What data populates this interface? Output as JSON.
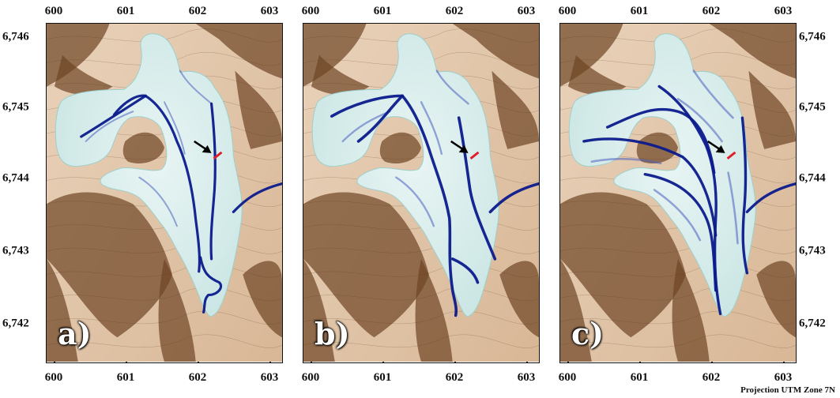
{
  "axes": {
    "x_ticks": [
      "600",
      "601",
      "602",
      "603"
    ],
    "y_ticks": [
      "6,746",
      "6,745",
      "6,744",
      "6,743",
      "6,742"
    ]
  },
  "panels": [
    {
      "label": "a)"
    },
    {
      "label": "b)"
    },
    {
      "label": "c)"
    }
  ],
  "projection": "Projection UTM Zone 7N",
  "colors": {
    "terrain_dark": "#6e4424",
    "terrain_light": "#e9d2ba",
    "glacier": "#c7e4e2",
    "channel": "#0b1a8c",
    "marker": "#e0202a",
    "arrow": "#000000"
  }
}
